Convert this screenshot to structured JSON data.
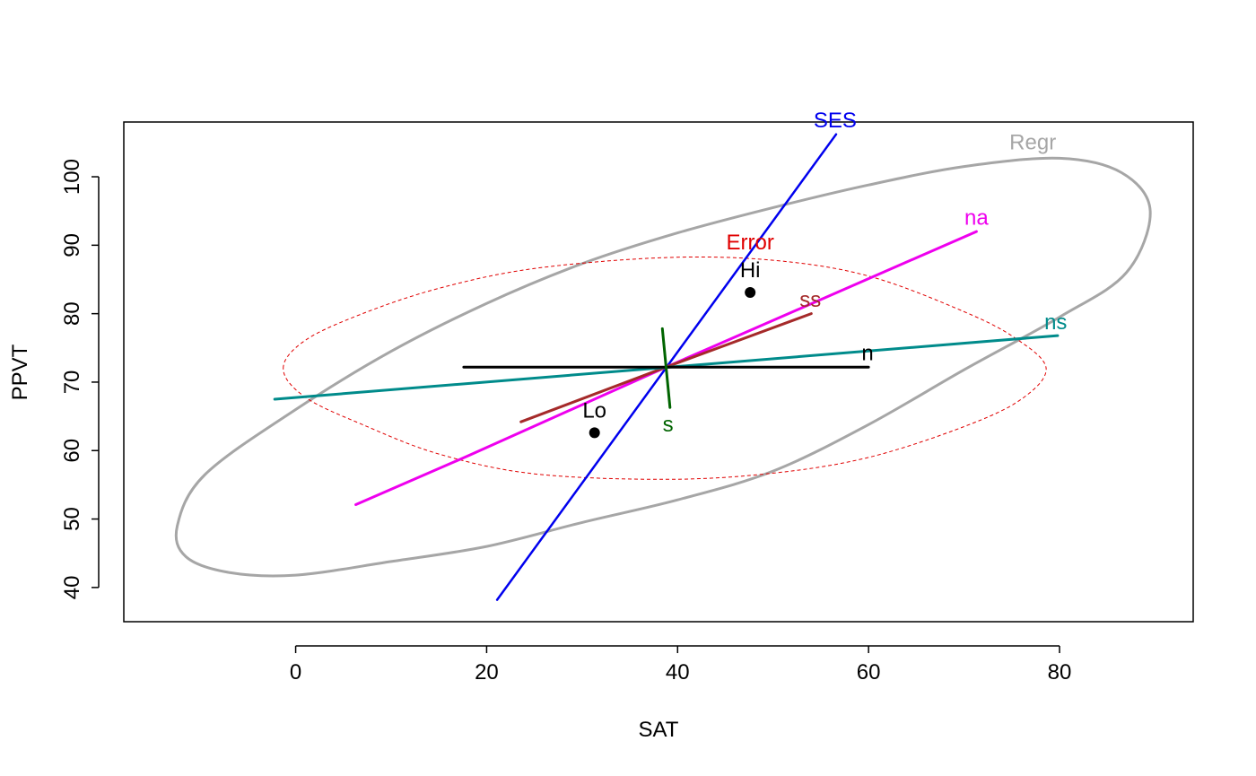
{
  "chart_data": {
    "type": "scatter",
    "title": "",
    "xlabel": "SAT",
    "ylabel": "PPVT",
    "xlim": [
      -18,
      94
    ],
    "ylim": [
      35,
      108
    ],
    "x_ticks": [
      0,
      20,
      40,
      60,
      80
    ],
    "y_ticks": [
      40,
      50,
      60,
      70,
      80,
      90,
      100
    ],
    "x_tick_labels": [
      "0",
      "20",
      "40",
      "60",
      "80"
    ],
    "y_tick_labels": [
      "40",
      "50",
      "60",
      "70",
      "80",
      "90",
      "100"
    ],
    "grid": false,
    "box": true,
    "points": [
      {
        "label": "Hi",
        "x": 47.6,
        "y": 83.1,
        "color": "#000000"
      },
      {
        "label": "Lo",
        "x": 31.3,
        "y": 62.6,
        "color": "#000000"
      }
    ],
    "ellipses": [
      {
        "label": "Regr",
        "color": "#a6a6a6",
        "dashed": false,
        "label_at": [
          77.2,
          104.0
        ],
        "points": [
          [
            -12.4,
            49.0
          ],
          [
            -9.5,
            56.5
          ],
          [
            0.0,
            66.0
          ],
          [
            10.0,
            74.5
          ],
          [
            20.0,
            81.5
          ],
          [
            30.0,
            87.3
          ],
          [
            40.0,
            91.8
          ],
          [
            50.0,
            95.5
          ],
          [
            60.0,
            98.8
          ],
          [
            70.0,
            101.5
          ],
          [
            80.0,
            102.7
          ],
          [
            86.5,
            100.6
          ],
          [
            89.5,
            95.0
          ],
          [
            87.0,
            86.0
          ],
          [
            80.0,
            79.5
          ],
          [
            70.0,
            71.8
          ],
          [
            60.0,
            63.8
          ],
          [
            50.0,
            57.0
          ],
          [
            40.0,
            52.8
          ],
          [
            30.0,
            49.5
          ],
          [
            20.0,
            46.0
          ],
          [
            10.0,
            43.8
          ],
          [
            0.0,
            41.8
          ],
          [
            -7.0,
            42.2
          ],
          [
            -11.5,
            44.5
          ],
          [
            -12.4,
            49.0
          ]
        ]
      },
      {
        "label": "Error",
        "color": "#e00000",
        "dashed": true,
        "label_at": [
          47.6,
          89.4
        ],
        "points": [
          [
            -1.3,
            72.0
          ],
          [
            1.0,
            76.1
          ],
          [
            7.0,
            80.0
          ],
          [
            15.0,
            83.7
          ],
          [
            25.0,
            86.6
          ],
          [
            38.8,
            88.2
          ],
          [
            50.0,
            87.8
          ],
          [
            60.0,
            85.5
          ],
          [
            70.0,
            80.3
          ],
          [
            75.5,
            76.3
          ],
          [
            78.6,
            72.0
          ],
          [
            76.0,
            67.5
          ],
          [
            70.0,
            63.5
          ],
          [
            60.0,
            59.0
          ],
          [
            50.0,
            56.7
          ],
          [
            38.8,
            55.8
          ],
          [
            25.0,
            56.6
          ],
          [
            15.0,
            59.5
          ],
          [
            7.0,
            63.8
          ],
          [
            1.0,
            67.8
          ],
          [
            -1.3,
            72.0
          ]
        ]
      }
    ],
    "series": [
      {
        "name": "SES",
        "color": "#0000ee",
        "width": 2.5,
        "x": [
          21.1,
          56.6
        ],
        "y": [
          38.2,
          106.2
        ],
        "label_at": [
          56.5,
          107.2
        ]
      },
      {
        "name": "na",
        "color": "#ee00ee",
        "width": 3,
        "x": [
          6.3,
          18.0,
          38.8,
          71.3
        ],
        "y": [
          52.1,
          59.2,
          72.2,
          92.0
        ],
        "label_at": [
          71.3,
          93.0
        ]
      },
      {
        "name": "ss",
        "color": "#a52a2a",
        "width": 3,
        "x": [
          23.6,
          38.8,
          54.0
        ],
        "y": [
          64.2,
          72.2,
          80.0
        ],
        "label_at": [
          53.9,
          81.0
        ]
      },
      {
        "name": "ns",
        "color": "#008b8b",
        "width": 3,
        "x": [
          -2.2,
          79.8
        ],
        "y": [
          67.5,
          76.8
        ],
        "label_at": [
          79.6,
          77.7
        ]
      },
      {
        "name": "n",
        "color": "#000000",
        "width": 3,
        "x": [
          17.6,
          60.0
        ],
        "y": [
          72.2,
          72.2
        ],
        "label_at": [
          59.9,
          73.2
        ]
      },
      {
        "name": "s",
        "color": "#006400",
        "width": 3,
        "x": [
          38.4,
          39.2
        ],
        "y": [
          77.8,
          66.3
        ],
        "label_at": [
          39.0,
          62.8
        ]
      }
    ]
  }
}
